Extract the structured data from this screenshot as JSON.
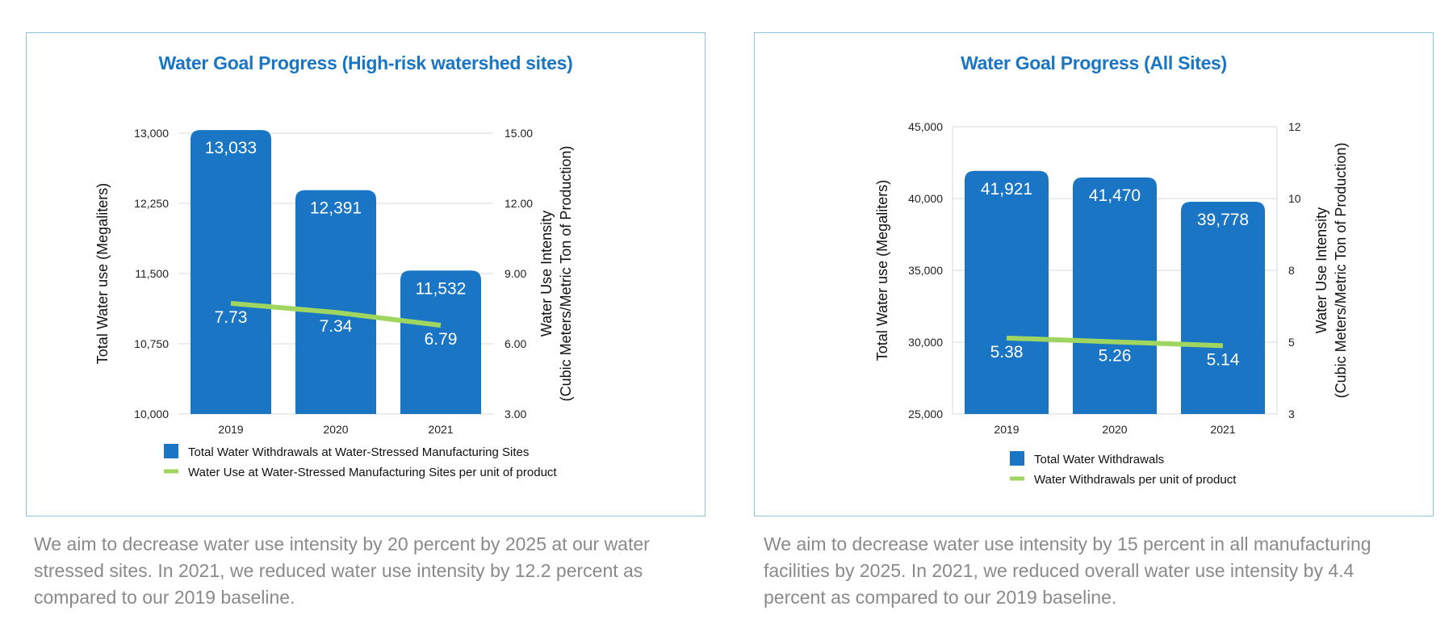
{
  "colors": {
    "bar": "#1a75c4",
    "line": "#9fd65f",
    "title": "#1a75c4",
    "caption": "#8a8a8a",
    "border": "#8cc4dc",
    "grid": "#d8d8d8"
  },
  "chart_data": [
    {
      "type": "bar",
      "title": "Water Goal Progress (High-risk watershed sites)",
      "categories": [
        "2019",
        "2020",
        "2021"
      ],
      "ylabel": "Total Water use (Megaliters)",
      "y2label_line1": "Water Use Intensity",
      "y2label_line2": "(Cubic Meters/Metric Ton of Production)",
      "ylim": [
        10000,
        13000
      ],
      "yticks": [
        "10,000",
        "10,750",
        "11,500",
        "12,250",
        "13,000"
      ],
      "y2lim": [
        3,
        15
      ],
      "y2ticks": [
        "3.00",
        "6.00",
        "9.00",
        "12.00",
        "15.00"
      ],
      "series": [
        {
          "name": "Total Water Withdrawals at Water-Stressed Manufacturing Sites",
          "kind": "bar",
          "values": [
            13033,
            12391,
            11532
          ],
          "labels": [
            "13,033",
            "12,391",
            "11,532"
          ]
        },
        {
          "name": "Water Use at Water-Stressed Manufacturing Sites per unit of product",
          "kind": "line",
          "axis": "right",
          "values": [
            7.73,
            7.34,
            6.79
          ],
          "labels": [
            "7.73",
            "7.34",
            "6.79"
          ]
        }
      ],
      "grid": true,
      "legend": "bottom"
    },
    {
      "type": "bar",
      "title": "Water Goal Progress (All Sites)",
      "categories": [
        "2019",
        "2020",
        "2021"
      ],
      "ylabel": "Total Water use (Megaliters)",
      "y2label_line1": "Water Use Intensity",
      "y2label_line2": "(Cubic Meters/Metric Ton of Production)",
      "ylim": [
        25000,
        45000
      ],
      "yticks": [
        "25,000",
        "30,000",
        "35,000",
        "40,000",
        "45,000"
      ],
      "y2lim": [
        3,
        12
      ],
      "y2ticks": [
        "3",
        "5",
        "8",
        "10",
        "12"
      ],
      "series": [
        {
          "name": "Total Water Withdrawals",
          "kind": "bar",
          "values": [
            41921,
            41470,
            39778
          ],
          "labels": [
            "41,921",
            "41,470",
            "39,778"
          ]
        },
        {
          "name": "Water Withdrawals per unit of product",
          "kind": "line",
          "axis": "right",
          "values": [
            5.38,
            5.26,
            5.14
          ],
          "labels": [
            "5.38",
            "5.26",
            "5.14"
          ]
        }
      ],
      "grid": true,
      "legend": "bottom"
    }
  ],
  "captions": {
    "left": "We aim to decrease water use intensity by 20 percent by 2025 at our water stressed sites. In 2021, we reduced water use intensity by 12.2 percent as compared to our 2019 baseline.",
    "right": "We aim to decrease water use intensity by 15 percent in all manufacturing facilities by 2025. In 2021, we reduced overall water use intensity by 4.4 percent as compared to our 2019 baseline."
  }
}
